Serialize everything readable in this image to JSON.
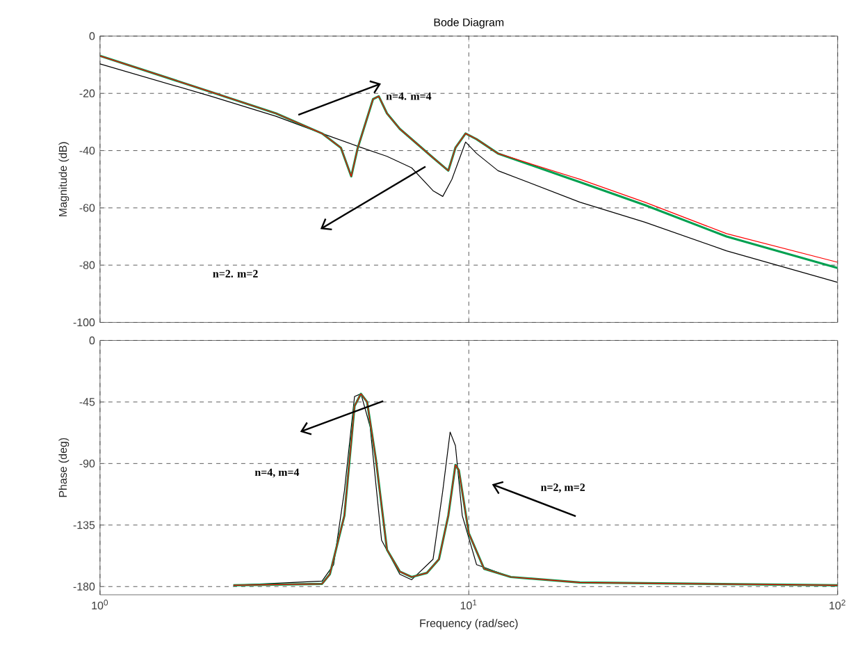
{
  "chart_data": [
    {
      "type": "line",
      "title": "Bode Diagram",
      "ylabel": "Magnitude (dB)",
      "xlim": [
        1,
        100
      ],
      "ylim": [
        -100,
        0
      ],
      "xticks": [
        {
          "value": 1,
          "label": null
        },
        {
          "value": 10,
          "label": null
        },
        {
          "value": 100,
          "label": null
        }
      ],
      "yticks": [
        0,
        -20,
        -40,
        -60,
        -80,
        -100
      ],
      "log": "x",
      "grid": true,
      "tick_labels": "y",
      "annotations": [
        "n=4. m=4",
        "n=2. m=2"
      ],
      "series": [
        {
          "color": "#000000",
          "x": [
            1,
            2,
            3,
            4,
            5,
            6,
            7,
            8,
            8.5,
            9,
            9.8,
            10.5,
            12,
            20,
            30,
            50,
            100
          ],
          "values": [
            -9.7,
            -21,
            -28,
            -34,
            -38.5,
            -42,
            -46,
            -54,
            -56,
            -50,
            -37,
            -41,
            -47,
            -58,
            -65,
            -75,
            -86
          ]
        },
        {
          "color": "#00a050",
          "x": [
            1,
            2,
            3,
            4,
            4.5,
            4.8,
            5,
            5.5,
            5.7,
            6,
            6.5,
            8,
            8.8,
            9.2,
            9.8,
            10.5,
            12,
            20,
            30,
            50,
            100
          ],
          "values": [
            -6.9,
            -19.5,
            -27,
            -34,
            -39,
            -49,
            -39,
            -22,
            -21,
            -27,
            -32.4,
            -42.5,
            -47,
            -39,
            -34,
            -36,
            -41,
            -51,
            -59,
            -70,
            -81
          ]
        },
        {
          "color": "#ff0000",
          "x": [
            1,
            2,
            3,
            4,
            4.5,
            4.8,
            5,
            5.5,
            5.7,
            6,
            6.5,
            8,
            8.8,
            9.2,
            9.8,
            10.5,
            12,
            20,
            30,
            50,
            100
          ],
          "values": [
            -6.9,
            -19.5,
            -27,
            -34,
            -39,
            -49,
            -39,
            -22,
            -21,
            -27,
            -32.4,
            -42.5,
            -47,
            -39,
            -34,
            -36,
            -41,
            -50,
            -58,
            -69,
            -79
          ]
        }
      ]
    },
    {
      "type": "line",
      "ylabel": "Phase (deg)",
      "xlabel": "Frequency  (rad/sec)",
      "xlim": [
        1,
        100
      ],
      "ylim": [
        -186,
        0
      ],
      "xticks": [
        {
          "value": 1,
          "label": "10$^{0}$"
        },
        {
          "value": 10,
          "label": "10$^{1}$"
        },
        {
          "value": 100,
          "label": "10$^{2}$"
        }
      ],
      "yticks": [
        0,
        -45,
        -90,
        -135,
        -180
      ],
      "log": "x",
      "grid": true,
      "annotations": [
        "n=4, m=4",
        "n=2, m=2"
      ],
      "series": [
        {
          "color": "#000000",
          "x": [
            2.3,
            4,
            4.3,
            4.6,
            4.9,
            5.1,
            5.4,
            5.8,
            6.5,
            7,
            8,
            8.5,
            8.9,
            9.2,
            9.6,
            10.5,
            13,
            20,
            100
          ],
          "values": [
            -179,
            -176,
            -164,
            -110,
            -41,
            -39,
            -63,
            -146,
            -171,
            -175,
            -160,
            -110,
            -67,
            -77,
            -128,
            -164,
            -173,
            -177,
            -179
          ]
        },
        {
          "color": "#00a050",
          "x": [
            2.3,
            4,
            4.2,
            4.6,
            4.9,
            5.1,
            5.3,
            5.6,
            6,
            6.5,
            7,
            7.7,
            8.3,
            8.8,
            9.2,
            9.4,
            10,
            11,
            13,
            20,
            100
          ],
          "values": [
            -179,
            -178,
            -171,
            -128,
            -48,
            -39,
            -45,
            -87,
            -153,
            -169,
            -173,
            -170,
            -160,
            -128,
            -91,
            -95,
            -141,
            -167,
            -173,
            -177,
            -179
          ]
        },
        {
          "color": "#ff0000",
          "x": [
            2.3,
            4,
            4.2,
            4.6,
            4.9,
            5.1,
            5.3,
            5.6,
            6,
            6.5,
            7,
            7.7,
            8.3,
            8.8,
            9.2,
            9.4,
            10,
            11,
            13,
            20,
            100
          ],
          "values": [
            -179,
            -178,
            -171,
            -128,
            -48,
            -39,
            -45,
            -87,
            -153,
            -169,
            -173,
            -170,
            -160,
            -128,
            -91,
            -95,
            -141,
            -167,
            -173,
            -177,
            -179
          ]
        }
      ]
    }
  ]
}
